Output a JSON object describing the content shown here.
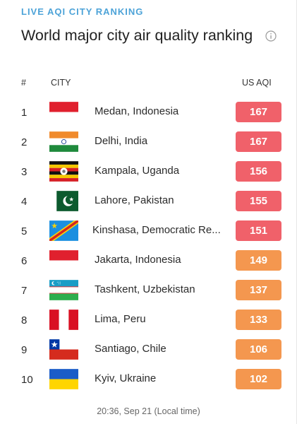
{
  "header": {
    "kicker": "LIVE AQI CITY RANKING",
    "title": "World major city air quality ranking",
    "info_icon": "info-circle-icon"
  },
  "table": {
    "columns": [
      "#",
      "CITY",
      "US AQI"
    ],
    "rows": [
      {
        "rank": "1",
        "city": "Medan, Indonesia",
        "aqi": "167",
        "flag": "indonesia-flag-icon",
        "level": "red"
      },
      {
        "rank": "2",
        "city": "Delhi, India",
        "aqi": "167",
        "flag": "india-flag-icon",
        "level": "red"
      },
      {
        "rank": "3",
        "city": "Kampala, Uganda",
        "aqi": "156",
        "flag": "uganda-flag-icon",
        "level": "red"
      },
      {
        "rank": "4",
        "city": "Lahore, Pakistan",
        "aqi": "155",
        "flag": "pakistan-flag-icon",
        "level": "red"
      },
      {
        "rank": "5",
        "city": "Kinshasa, Democratic Re...",
        "aqi": "151",
        "flag": "dr-congo-flag-icon",
        "level": "red"
      },
      {
        "rank": "6",
        "city": "Jakarta, Indonesia",
        "aqi": "149",
        "flag": "indonesia-flag-icon",
        "level": "orange"
      },
      {
        "rank": "7",
        "city": "Tashkent, Uzbekistan",
        "aqi": "137",
        "flag": "uzbekistan-flag-icon",
        "level": "orange"
      },
      {
        "rank": "8",
        "city": "Lima, Peru",
        "aqi": "133",
        "flag": "peru-flag-icon",
        "level": "orange"
      },
      {
        "rank": "9",
        "city": "Santiago, Chile",
        "aqi": "106",
        "flag": "chile-flag-icon",
        "level": "orange"
      },
      {
        "rank": "10",
        "city": "Kyiv, Ukraine",
        "aqi": "102",
        "flag": "ukraine-flag-icon",
        "level": "orange"
      }
    ]
  },
  "footer": {
    "timestamp": "20:36, Sep 21 (Local time)"
  },
  "colors": {
    "kicker": "#4da3d8",
    "aqi_red": "#f0616a",
    "aqi_orange": "#f4974f"
  }
}
